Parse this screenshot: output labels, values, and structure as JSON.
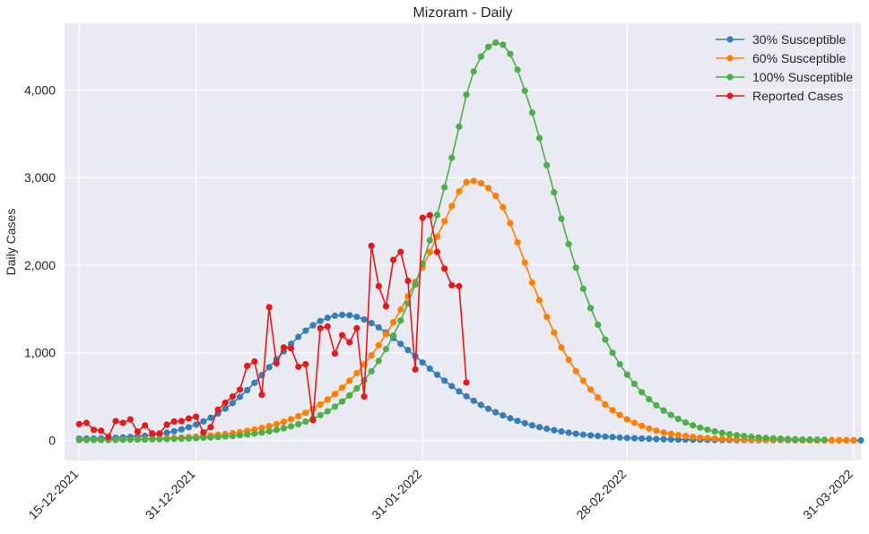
{
  "chart_data": {
    "type": "line",
    "title": "Mizoram - Daily",
    "xlabel": "",
    "ylabel": "Daily Cases",
    "x_start": "2021-12-15",
    "x_end": "2022-03-31",
    "xlim": [
      "2021-12-13",
      "2022-04-01"
    ],
    "ylim": [
      -230,
      4760
    ],
    "y_ticks": [
      0,
      1000,
      2000,
      3000,
      4000
    ],
    "y_tick_labels": [
      "0",
      "1,000",
      "2,000",
      "3,000",
      "4,000"
    ],
    "x_ticks": [
      "2021-12-15",
      "2021-12-31",
      "2022-01-31",
      "2022-02-28",
      "2022-03-31"
    ],
    "x_tick_labels": [
      "15-12-2021",
      "31-12-2021",
      "31-01-2022",
      "28-02-2022",
      "31-03-2022"
    ],
    "grid": true,
    "legend_position": "top-right",
    "background": "#eaeaf2",
    "series": [
      {
        "name": "30% Susceptible",
        "color": "#377eb8",
        "values": [
          20,
          21,
          22,
          24,
          27,
          30,
          34,
          39,
          45,
          52,
          61,
          73,
          87,
          104,
          125,
          150,
          180,
          216,
          258,
          307,
          363,
          426,
          496,
          573,
          656,
          744,
          835,
          926,
          1016,
          1102,
          1181,
          1252,
          1313,
          1362,
          1399,
          1422,
          1432,
          1428,
          1410,
          1380,
          1339,
          1289,
          1231,
          1168,
          1101,
          1031,
          960,
          889,
          818,
          749,
          682,
          619,
          559,
          503,
          452,
          404,
          361,
          321,
          285,
          252,
          222,
          196,
          172,
          151,
          133,
          116,
          101,
          88,
          76,
          66,
          57,
          50,
          43,
          37,
          32,
          28,
          24,
          21,
          18,
          15,
          13,
          11,
          10,
          9,
          8,
          7,
          6,
          5,
          4,
          4,
          3,
          3,
          3,
          2,
          2,
          2,
          2,
          1,
          1,
          1,
          1,
          1,
          1,
          1,
          1,
          1,
          1,
          0
        ]
      },
      {
        "name": "60% Susceptible",
        "color": "#ff7f00",
        "values": [
          5,
          6,
          6,
          7,
          8,
          9,
          10,
          12,
          14,
          16,
          18,
          21,
          24,
          28,
          32,
          37,
          42,
          48,
          55,
          63,
          72,
          82,
          94,
          108,
          124,
          142,
          162,
          185,
          212,
          242,
          276,
          315,
          359,
          409,
          466,
          530,
          601,
          680,
          767,
          864,
          970,
          1086,
          1212,
          1348,
          1493,
          1647,
          1809,
          1977,
          2150,
          2326,
          2501,
          2674,
          2840,
          2945,
          2960,
          2935,
          2880,
          2790,
          2660,
          2480,
          2260,
          2030,
          1800,
          1600,
          1410,
          1230,
          1060,
          920,
          790,
          680,
          580,
          490,
          410,
          345,
          290,
          240,
          200,
          165,
          135,
          110,
          90,
          75,
          60,
          50,
          40,
          32,
          26,
          21,
          17,
          14,
          11,
          9,
          7,
          6,
          5,
          4,
          3,
          3,
          2,
          2,
          2,
          1,
          1,
          1,
          1,
          1,
          1
        ]
      },
      {
        "name": "100% Susceptible",
        "color": "#4daf4a",
        "values": [
          3,
          4,
          4,
          5,
          5,
          6,
          7,
          8,
          9,
          10,
          11,
          13,
          15,
          17,
          19,
          22,
          25,
          29,
          33,
          38,
          44,
          50,
          58,
          67,
          77,
          89,
          103,
          119,
          138,
          160,
          185,
          214,
          248,
          287,
          332,
          384,
          444,
          513,
          593,
          684,
          788,
          907,
          1042,
          1195,
          1368,
          1562,
          1778,
          2018,
          2283,
          2573,
          2888,
          3225,
          3580,
          3945,
          4210,
          4380,
          4490,
          4540,
          4515,
          4410,
          4230,
          3990,
          3740,
          3450,
          3140,
          2830,
          2530,
          2240,
          1970,
          1730,
          1510,
          1320,
          1150,
          1000,
          870,
          750,
          645,
          550,
          470,
          400,
          340,
          290,
          245,
          205,
          172,
          145,
          122,
          102,
          85,
          71,
          59,
          49,
          41,
          34,
          28,
          23,
          19,
          16,
          13,
          11,
          9,
          8,
          7
        ]
      },
      {
        "name": "Reported Cases",
        "color": "#e41a1c",
        "values": [
          185,
          200,
          120,
          110,
          40,
          220,
          200,
          240,
          100,
          170,
          80,
          80,
          180,
          215,
          220,
          250,
          270,
          90,
          150,
          350,
          430,
          500,
          580,
          850,
          900,
          520,
          1520,
          880,
          1060,
          1050,
          840,
          870,
          230,
          1280,
          1300,
          990,
          1200,
          1120,
          1280,
          500,
          2220,
          1760,
          1530,
          2060,
          2150,
          1820,
          810,
          2540,
          2570,
          2150,
          1960,
          1770,
          1760,
          660
        ]
      }
    ]
  }
}
